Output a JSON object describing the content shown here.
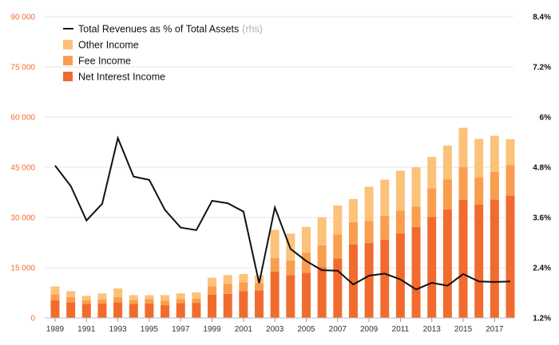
{
  "chart_data": {
    "type": "bar",
    "stacked": true,
    "categories": [
      "1989",
      "1990",
      "1991",
      "1992",
      "1993",
      "1994",
      "1995",
      "1996",
      "1997",
      "1998",
      "1999",
      "2000",
      "2001",
      "2002",
      "2003",
      "2004",
      "2005",
      "2006",
      "2007",
      "2008",
      "2009",
      "2010",
      "2011",
      "2012",
      "2013",
      "2014",
      "2015",
      "2016",
      "2017",
      "2018"
    ],
    "x_tick_labels": [
      "1989",
      "1991",
      "1993",
      "1995",
      "1997",
      "1999",
      "2001",
      "2003",
      "2005",
      "2007",
      "2009",
      "2011",
      "2013",
      "2015",
      "2017"
    ],
    "series": [
      {
        "name": "Net Interest Income",
        "color": "#f26b2e",
        "values": [
          5300,
          4700,
          4200,
          4300,
          4700,
          4200,
          4300,
          3800,
          4400,
          4500,
          7000,
          7200,
          8000,
          8200,
          13800,
          12800,
          13500,
          15200,
          17800,
          21900,
          22400,
          23400,
          25300,
          27200,
          30200,
          32400,
          35300,
          33900,
          35400,
          36600
        ]
      },
      {
        "name": "Fee Income",
        "color": "#f99e4e",
        "values": [
          1700,
          1500,
          1100,
          1200,
          1500,
          1200,
          1300,
          1300,
          1200,
          1300,
          2400,
          3000,
          2600,
          2200,
          4100,
          4400,
          6000,
          6500,
          7100,
          6700,
          6600,
          7100,
          6800,
          6100,
          8500,
          9000,
          9800,
          8100,
          8200,
          9100
        ]
      },
      {
        "name": "Other Income",
        "color": "#fcc27a",
        "values": [
          2400,
          1800,
          1300,
          1800,
          2600,
          1400,
          1200,
          1700,
          1700,
          1800,
          2600,
          2600,
          2500,
          2300,
          8400,
          8000,
          7700,
          8400,
          8700,
          6900,
          10200,
          10800,
          11900,
          11800,
          9400,
          10100,
          11700,
          11500,
          10800,
          7700
        ]
      }
    ],
    "line_series": {
      "name": "Total Revenues as % of Total Assets",
      "axis": "rhs",
      "color": "#111111",
      "values": [
        4.84,
        4.35,
        3.53,
        3.93,
        5.5,
        4.58,
        4.5,
        3.78,
        3.36,
        3.3,
        4.0,
        3.94,
        3.74,
        2.03,
        3.84,
        2.85,
        2.56,
        2.34,
        2.33,
        2.0,
        2.21,
        2.26,
        2.12,
        1.88,
        2.04,
        1.97,
        2.25,
        2.07,
        2.06,
        2.07
      ]
    },
    "y_left": {
      "ticks": [
        "0",
        "15 000",
        "30 000",
        "45 000",
        "60 000",
        "75 000",
        "90 000"
      ],
      "ylim": [
        0,
        90000
      ]
    },
    "y_right": {
      "ticks": [
        "1.2%",
        "2.4%",
        "3.6%",
        "4.8%",
        "6%",
        "7.2%",
        "8.4%"
      ],
      "ylim": [
        1.2,
        8.4
      ]
    },
    "legend": {
      "placement": "top-left",
      "items": [
        {
          "label": "Total Revenues as % of Total Assets",
          "note": "(rhs)",
          "kind": "line",
          "color": "#111111"
        },
        {
          "label": "Other Income",
          "note": "",
          "kind": "box",
          "color": "#fcc27a"
        },
        {
          "label": "Fee Income",
          "note": "",
          "kind": "box",
          "color": "#f99e4e"
        },
        {
          "label": "Net Interest Income",
          "note": "",
          "kind": "box",
          "color": "#f26b2e"
        }
      ]
    },
    "grid": true
  }
}
